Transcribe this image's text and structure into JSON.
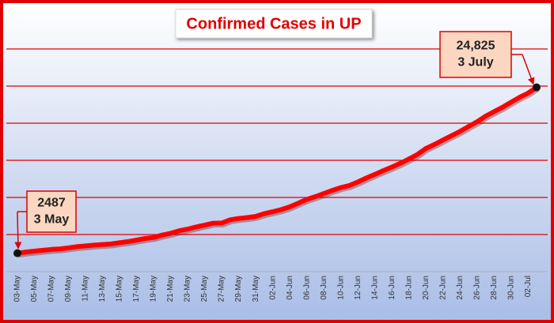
{
  "chart_data": {
    "type": "line",
    "title": "Confirmed Cases in UP",
    "categories": [
      "03-May",
      null,
      "05-May",
      null,
      "07-May",
      null,
      "09-May",
      null,
      "11-May",
      null,
      "13-May",
      null,
      "15-May",
      null,
      "17-May",
      null,
      "19-May",
      null,
      "21-May",
      null,
      "23-May",
      null,
      "25-May",
      null,
      "27-May",
      null,
      "29-May",
      null,
      "31-May",
      null,
      "02-Jun",
      null,
      "04-Jun",
      null,
      "06-Jun",
      null,
      "08-Jun",
      null,
      "10-Jun",
      null,
      "12-Jun",
      null,
      "14-Jun",
      null,
      "16-Jun",
      null,
      "18-Jun",
      null,
      "20-Jun",
      null,
      "22-Jun",
      null,
      "24-Jun",
      null,
      "26-Jun",
      null,
      "28-Jun",
      null,
      "30-Jun",
      null,
      "02-Jul",
      null
    ],
    "values": [
      2487,
      2645,
      2766,
      2880,
      2998,
      3071,
      3214,
      3373,
      3467,
      3573,
      3664,
      3729,
      3902,
      4057,
      4259,
      4464,
      4605,
      4926,
      5175,
      5515,
      5735,
      6017,
      6268,
      6532,
      6548,
      6991,
      7170,
      7284,
      7445,
      7823,
      8075,
      8361,
      8729,
      9237,
      9733,
      10103,
      10536,
      10947,
      11335,
      11610,
      12088,
      12616,
      13118,
      13615,
      14091,
      14598,
      15181,
      15785,
      16594,
      17135,
      17731,
      18322,
      18893,
      19557,
      20193,
      20943,
      21549,
      22147,
      22828,
      23492,
      24056,
      24825
    ],
    "color": "#ff0000",
    "ylim": [
      0,
      30000
    ],
    "yticks": [
      5000,
      10000,
      15000,
      20000,
      25000,
      30000
    ],
    "grid": true,
    "annotations": [
      {
        "lines": [
          "2487",
          "3 May"
        ]
      },
      {
        "lines": [
          "24,825",
          "3 July"
        ]
      }
    ]
  }
}
